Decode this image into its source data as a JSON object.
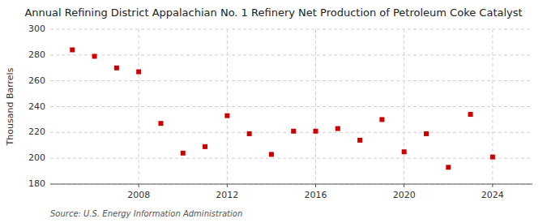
{
  "chart_data": {
    "type": "scatter",
    "title": "Annual Refining District Appalachian No. 1 Refinery Net Production of Petroleum Coke Catalyst",
    "y_label": "Thousand Barrels",
    "annotations": [
      "Source: U.S. Energy Information Administration"
    ],
    "x": [
      2005,
      2006,
      2007,
      2008,
      2009,
      2010,
      2011,
      2012,
      2013,
      2014,
      2015,
      2016,
      2017,
      2018,
      2019,
      2020,
      2021,
      2022,
      2023,
      2024
    ],
    "values": [
      284,
      279,
      270,
      267,
      227,
      204,
      209,
      233,
      219,
      203,
      221,
      221,
      223,
      214,
      230,
      205,
      219,
      193,
      234,
      201
    ],
    "color": "#cc0000",
    "marker": "square",
    "xlim": [
      2004.0,
      2025.8
    ],
    "xticks": [
      2008,
      2012,
      2016,
      2020,
      2024
    ],
    "ylim": [
      180,
      300
    ],
    "yticks": [
      180,
      200,
      220,
      240,
      260,
      280,
      300
    ],
    "grid": true
  }
}
